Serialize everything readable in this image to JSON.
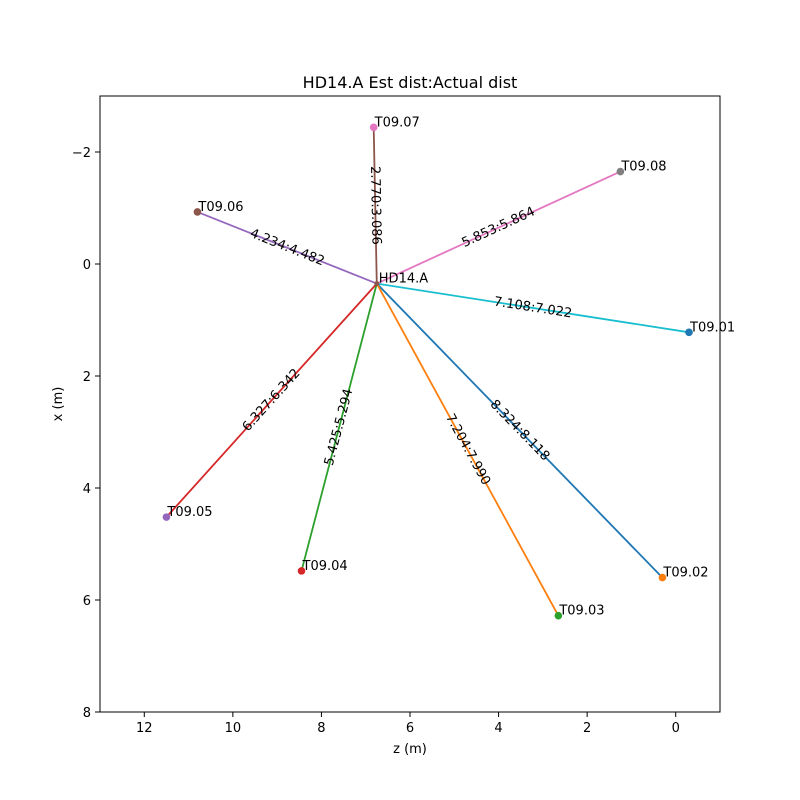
{
  "chart_data": {
    "type": "scatter",
    "title": "HD14.A  Est dist:Actual dist",
    "xlabel": "z (m)",
    "ylabel": "x (m)",
    "xlim": [
      13,
      -1
    ],
    "ylim": [
      8,
      -3
    ],
    "xticks": [
      12,
      10,
      8,
      6,
      4,
      2,
      0
    ],
    "yticks": [
      -2,
      0,
      2,
      4,
      6,
      8
    ],
    "grid": false,
    "center": {
      "name": "HD14.A",
      "z": 6.75,
      "x": 0.35
    },
    "series": [
      {
        "name": "T09.01",
        "z": -0.3,
        "x": 1.22,
        "label": "7.108:7.022",
        "line_color": "#17becf",
        "point_color": "#1f77b4"
      },
      {
        "name": "T09.02",
        "z": 0.3,
        "x": 5.6,
        "label": "8.324:8.118",
        "line_color": "#1f77b4",
        "point_color": "#ff7f0e"
      },
      {
        "name": "T09.03",
        "z": 2.65,
        "x": 6.28,
        "label": "7.204:7.990",
        "line_color": "#ff7f0e",
        "point_color": "#2ca02c"
      },
      {
        "name": "T09.04",
        "z": 8.45,
        "x": 5.48,
        "label": "5.425:5.294",
        "line_color": "#2ca02c",
        "point_color": "#d62728"
      },
      {
        "name": "T09.05",
        "z": 11.5,
        "x": 4.52,
        "label": "6.327:6.342",
        "line_color": "#d62728",
        "point_color": "#9467bd"
      },
      {
        "name": "T09.06",
        "z": 10.8,
        "x": -0.93,
        "label": "4.234:4.482",
        "line_color": "#9467bd",
        "point_color": "#8c564b"
      },
      {
        "name": "T09.07",
        "z": 6.82,
        "x": -2.44,
        "label": "2.770:3.086",
        "line_color": "#8c564b",
        "point_color": "#e377c2"
      },
      {
        "name": "T09.08",
        "z": 1.25,
        "x": -1.65,
        "label": "5.853:5.864",
        "line_color": "#e377c2",
        "point_color": "#7f7f7f"
      }
    ]
  }
}
